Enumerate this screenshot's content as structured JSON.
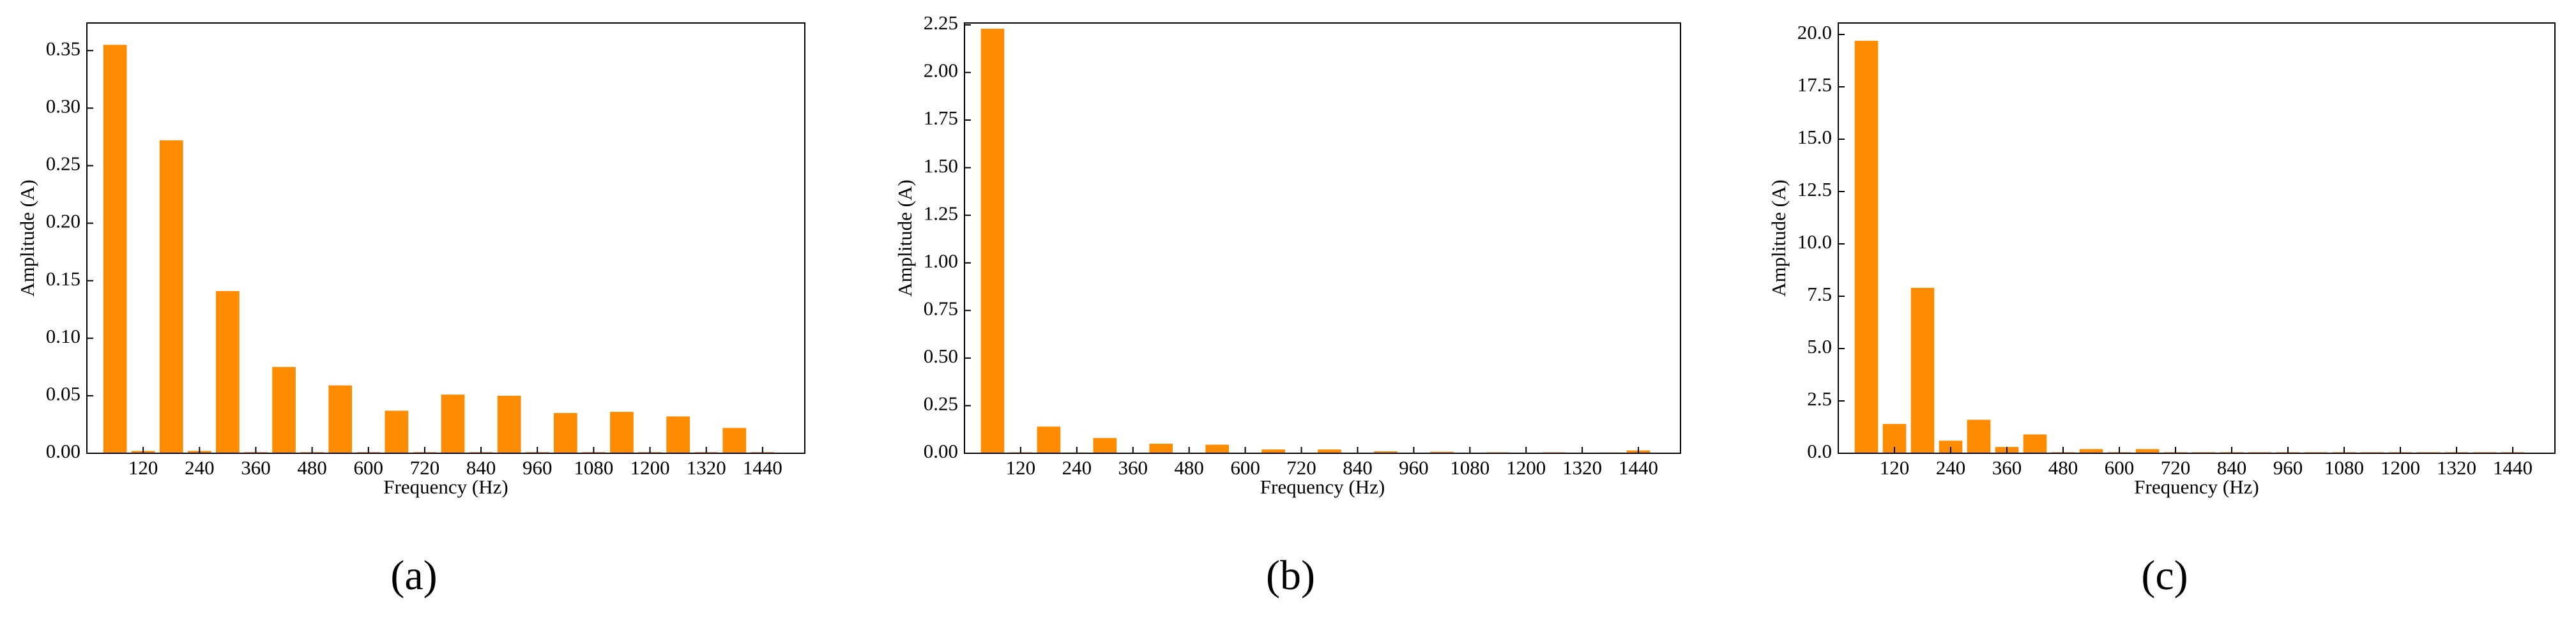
{
  "chart_data": [
    {
      "type": "bar",
      "caption": "(a)",
      "xlabel": "Frequency (Hz)",
      "ylabel": "Amplitude (A)",
      "color": "#ff8c00",
      "x": [
        60,
        120,
        180,
        240,
        300,
        360,
        420,
        480,
        540,
        600,
        660,
        720,
        780,
        840,
        900,
        960,
        1020,
        1080,
        1140,
        1200,
        1260,
        1320,
        1380,
        1440
      ],
      "values": [
        0.355,
        0.002,
        0.272,
        0.002,
        0.141,
        0.001,
        0.075,
        0.001,
        0.059,
        0.001,
        0.037,
        0.001,
        0.051,
        0.001,
        0.05,
        0.001,
        0.035,
        0.001,
        0.036,
        0.001,
        0.032,
        0.001,
        0.022,
        0.001
      ],
      "xlim": [
        0,
        1530
      ],
      "xticks": [
        120,
        240,
        360,
        480,
        600,
        720,
        840,
        960,
        1080,
        1200,
        1320,
        1440
      ],
      "ylim": [
        0,
        0.374
      ],
      "yticks": [
        {
          "value": 0,
          "label": "0.00"
        },
        {
          "value": 0.05,
          "label": "0.05"
        },
        {
          "value": 0.1,
          "label": "0.10"
        },
        {
          "value": 0.15,
          "label": "0.15"
        },
        {
          "value": 0.2,
          "label": "0.20"
        },
        {
          "value": 0.25,
          "label": "0.25"
        },
        {
          "value": 0.3,
          "label": "0.30"
        },
        {
          "value": 0.35,
          "label": "0.35"
        }
      ]
    },
    {
      "type": "bar",
      "caption": "(b)",
      "xlabel": "Frequency (Hz)",
      "ylabel": "Amplitude (A)",
      "color": "#ff8c00",
      "x": [
        60,
        120,
        180,
        240,
        300,
        360,
        420,
        480,
        540,
        600,
        660,
        720,
        780,
        840,
        900,
        960,
        1020,
        1080,
        1140,
        1200,
        1260,
        1320,
        1380,
        1440
      ],
      "values": [
        2.23,
        0.005,
        0.14,
        0.004,
        0.08,
        0.003,
        0.05,
        0.003,
        0.045,
        0.002,
        0.02,
        0.002,
        0.02,
        0.002,
        0.01,
        0.002,
        0.008,
        0.002,
        0.005,
        0.002,
        0.005,
        0.002,
        0.004,
        0.015
      ],
      "xlim": [
        0,
        1530
      ],
      "xticks": [
        120,
        240,
        360,
        480,
        600,
        720,
        840,
        960,
        1080,
        1200,
        1320,
        1440
      ],
      "ylim": [
        0,
        2.26
      ],
      "yticks": [
        {
          "value": 0,
          "label": "0.00"
        },
        {
          "value": 0.25,
          "label": "0.25"
        },
        {
          "value": 0.5,
          "label": "0.50"
        },
        {
          "value": 0.75,
          "label": "0.75"
        },
        {
          "value": 1,
          "label": "1.00"
        },
        {
          "value": 1.25,
          "label": "1.25"
        },
        {
          "value": 1.5,
          "label": "1.50"
        },
        {
          "value": 1.75,
          "label": "1.75"
        },
        {
          "value": 2,
          "label": "2.00"
        },
        {
          "value": 2.25,
          "label": "2.25"
        }
      ]
    },
    {
      "type": "bar",
      "caption": "(c)",
      "xlabel": "Frequency (Hz)",
      "ylabel": "Amplitude (A)",
      "color": "#ff8c00",
      "x": [
        60,
        120,
        180,
        240,
        300,
        360,
        420,
        480,
        540,
        600,
        660,
        720,
        780,
        840,
        900,
        960,
        1020,
        1080,
        1140,
        1200,
        1260,
        1320,
        1380,
        1440
      ],
      "values": [
        19.7,
        1.4,
        7.9,
        0.6,
        1.6,
        0.3,
        0.9,
        0.05,
        0.2,
        0.05,
        0.2,
        0.05,
        0.05,
        0.05,
        0.05,
        0.05,
        0.05,
        0.05,
        0.05,
        0.05,
        0.05,
        0.05,
        0.05,
        0.05
      ],
      "xlim": [
        0,
        1530
      ],
      "xticks": [
        120,
        240,
        360,
        480,
        600,
        720,
        840,
        960,
        1080,
        1200,
        1320,
        1440
      ],
      "ylim": [
        0,
        20.55
      ],
      "yticks": [
        {
          "value": 0,
          "label": "0.0"
        },
        {
          "value": 2.5,
          "label": "2.5"
        },
        {
          "value": 5,
          "label": "5.0"
        },
        {
          "value": 7.5,
          "label": "7.5"
        },
        {
          "value": 10,
          "label": "10.0"
        },
        {
          "value": 12.5,
          "label": "12.5"
        },
        {
          "value": 15,
          "label": "15.0"
        },
        {
          "value": 17.5,
          "label": "17.5"
        },
        {
          "value": 20,
          "label": "20.0"
        }
      ]
    }
  ]
}
